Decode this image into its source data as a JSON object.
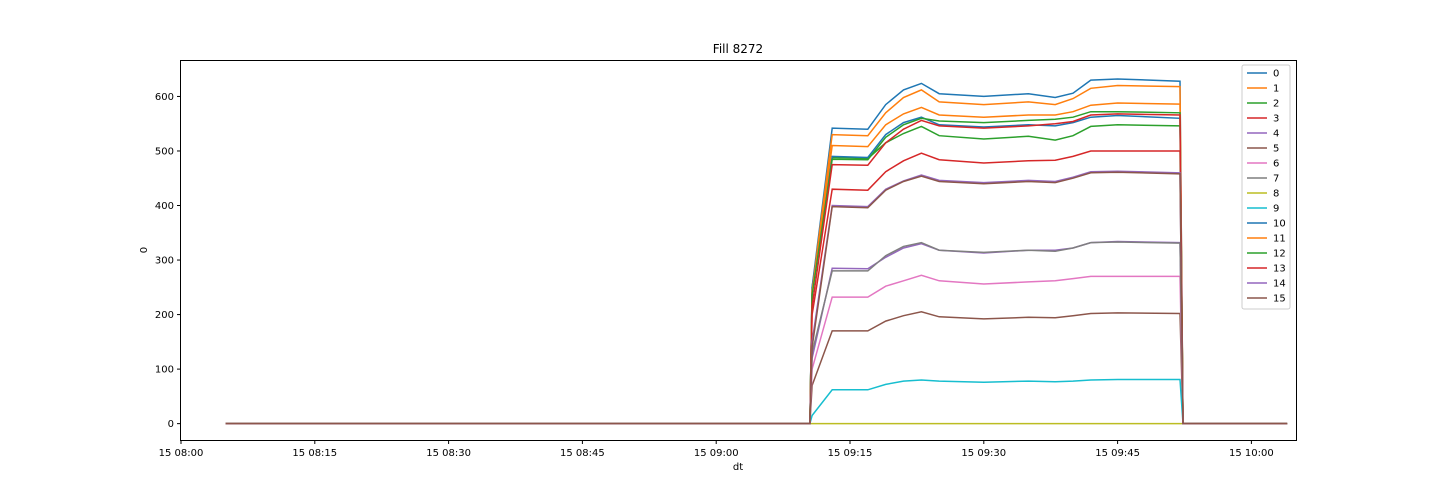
{
  "chart_data": {
    "type": "line",
    "title": "Fill 8272",
    "xlabel": "dt",
    "ylabel": "0",
    "xlim": [
      "2022-10-15T08:00:00",
      "2022-10-15T10:05:00"
    ],
    "ylim": [
      -30,
      665
    ],
    "x_ticks": [
      {
        "t": "2022-10-15T08:00:00",
        "label": "15 08:00"
      },
      {
        "t": "2022-10-15T08:15:00",
        "label": "15 08:15"
      },
      {
        "t": "2022-10-15T08:30:00",
        "label": "15 08:30"
      },
      {
        "t": "2022-10-15T08:45:00",
        "label": "15 08:45"
      },
      {
        "t": "2022-10-15T09:00:00",
        "label": "15 09:00"
      },
      {
        "t": "2022-10-15T09:15:00",
        "label": "15 09:15"
      },
      {
        "t": "2022-10-15T09:30:00",
        "label": "15 09:30"
      },
      {
        "t": "2022-10-15T09:45:00",
        "label": "15 09:45"
      },
      {
        "t": "2022-10-15T10:00:00",
        "label": "15 10:00"
      }
    ],
    "y_ticks": [
      0,
      100,
      200,
      300,
      400,
      500,
      600
    ],
    "grid": false,
    "legend_position": "top-right",
    "x": [
      "2022-10-15T08:05:00",
      "2022-10-15T09:10:30",
      "2022-10-15T09:10:45",
      "2022-10-15T09:13:00",
      "2022-10-15T09:17:00",
      "2022-10-15T09:19:00",
      "2022-10-15T09:21:00",
      "2022-10-15T09:23:00",
      "2022-10-15T09:25:00",
      "2022-10-15T09:30:00",
      "2022-10-15T09:35:00",
      "2022-10-15T09:38:00",
      "2022-10-15T09:40:00",
      "2022-10-15T09:42:00",
      "2022-10-15T09:45:00",
      "2022-10-15T09:52:00",
      "2022-10-15T09:52:20",
      "2022-10-15T10:04:00"
    ],
    "series": [
      {
        "name": "0",
        "color": "#1f77b4",
        "values": [
          0,
          0,
          250,
          542,
          540,
          585,
          612,
          624,
          605,
          600,
          605,
          598,
          606,
          630,
          632,
          628,
          0,
          0
        ]
      },
      {
        "name": "1",
        "color": "#ff7f0e",
        "values": [
          0,
          0,
          245,
          530,
          528,
          570,
          598,
          612,
          590,
          585,
          590,
          585,
          596,
          615,
          620,
          618,
          0,
          0
        ]
      },
      {
        "name": "2",
        "color": "#2ca02c",
        "values": [
          0,
          0,
          240,
          488,
          486,
          515,
          532,
          545,
          528,
          522,
          527,
          520,
          528,
          545,
          548,
          546,
          0,
          0
        ]
      },
      {
        "name": "3",
        "color": "#d62728",
        "values": [
          0,
          0,
          200,
          430,
          428,
          462,
          482,
          496,
          484,
          478,
          482,
          483,
          490,
          500,
          500,
          500,
          0,
          0
        ]
      },
      {
        "name": "4",
        "color": "#9467bd",
        "values": [
          0,
          0,
          120,
          285,
          284,
          305,
          322,
          330,
          318,
          313,
          318,
          318,
          322,
          332,
          334,
          332,
          0,
          0
        ]
      },
      {
        "name": "5",
        "color": "#8c564b",
        "values": [
          0,
          0,
          70,
          170,
          170,
          188,
          198,
          205,
          196,
          192,
          195,
          194,
          198,
          202,
          203,
          202,
          0,
          0
        ]
      },
      {
        "name": "6",
        "color": "#e377c2",
        "values": [
          0,
          0,
          100,
          232,
          232,
          252,
          262,
          272,
          262,
          256,
          260,
          262,
          266,
          270,
          270,
          270,
          0,
          0
        ]
      },
      {
        "name": "7",
        "color": "#7f7f7f",
        "values": [
          0,
          0,
          130,
          280,
          280,
          308,
          325,
          332,
          318,
          314,
          318,
          316,
          322,
          332,
          333,
          331,
          0,
          0
        ]
      },
      {
        "name": "8",
        "color": "#bcbd22",
        "values": [
          0,
          0,
          0,
          0,
          0,
          0,
          0,
          0,
          0,
          0,
          0,
          0,
          0,
          0,
          0,
          0,
          0,
          0
        ]
      },
      {
        "name": "9",
        "color": "#17becf",
        "values": [
          0,
          0,
          15,
          62,
          62,
          72,
          78,
          80,
          78,
          76,
          78,
          77,
          78,
          80,
          81,
          81,
          0,
          0
        ]
      },
      {
        "name": "10",
        "color": "#1f77b4",
        "values": [
          0,
          0,
          250,
          490,
          488,
          530,
          552,
          562,
          548,
          544,
          548,
          546,
          552,
          562,
          565,
          560,
          0,
          0
        ]
      },
      {
        "name": "11",
        "color": "#ff7f0e",
        "values": [
          0,
          0,
          242,
          510,
          508,
          548,
          568,
          580,
          566,
          562,
          566,
          566,
          572,
          584,
          588,
          586,
          0,
          0
        ]
      },
      {
        "name": "12",
        "color": "#2ca02c",
        "values": [
          0,
          0,
          235,
          485,
          484,
          525,
          548,
          560,
          555,
          552,
          556,
          558,
          562,
          572,
          572,
          570,
          0,
          0
        ]
      },
      {
        "name": "13",
        "color": "#d62728",
        "values": [
          0,
          0,
          215,
          475,
          474,
          515,
          540,
          556,
          546,
          542,
          546,
          550,
          554,
          566,
          568,
          566,
          0,
          0
        ]
      },
      {
        "name": "14",
        "color": "#9467bd",
        "values": [
          0,
          0,
          150,
          400,
          398,
          430,
          445,
          456,
          446,
          442,
          446,
          444,
          452,
          462,
          463,
          460,
          0,
          0
        ]
      },
      {
        "name": "15",
        "color": "#8c564b",
        "values": [
          0,
          0,
          140,
          398,
          396,
          428,
          444,
          454,
          444,
          440,
          444,
          442,
          450,
          460,
          461,
          458,
          0,
          0
        ]
      }
    ]
  }
}
